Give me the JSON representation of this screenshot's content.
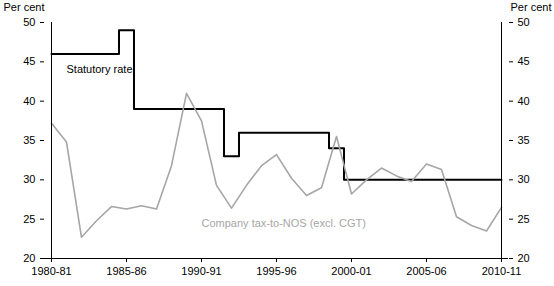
{
  "chart_data": {
    "type": "line",
    "y_label": "Per cent",
    "categories": [
      "1980-81",
      null,
      null,
      null,
      null,
      "1985-86",
      null,
      null,
      null,
      null,
      "1990-91",
      null,
      null,
      null,
      null,
      "1995-96",
      null,
      null,
      null,
      null,
      "2000-01",
      null,
      null,
      null,
      null,
      "2005-06",
      null,
      null,
      null,
      null,
      "2010-11"
    ],
    "series": [
      {
        "name": "Statutory rate",
        "color": "#000000",
        "type": "step",
        "values": [
          46,
          46,
          46,
          46,
          46,
          49,
          39,
          39,
          39,
          39,
          39,
          39,
          33,
          36,
          36,
          36,
          36,
          36,
          36,
          34,
          30,
          30,
          30,
          30,
          30,
          30,
          30,
          30,
          30,
          30,
          30
        ]
      },
      {
        "name": "Company tax-to-NOS (excl. CGT)",
        "color": "#a6a6a6",
        "type": "line",
        "values": [
          37.2,
          34.8,
          22.7,
          24.8,
          26.6,
          26.3,
          26.7,
          26.3,
          31.8,
          41,
          37.5,
          29.3,
          26.4,
          29.3,
          31.8,
          33.2,
          30.2,
          28,
          29,
          35.5,
          28.2,
          30,
          31.5,
          30.5,
          29.8,
          32,
          31.3,
          25.3,
          24.2,
          23.5,
          26.5
        ]
      }
    ],
    "ylim": [
      20,
      50
    ],
    "yticks": [
      20,
      25,
      30,
      35,
      40,
      45,
      50
    ],
    "grid": false
  }
}
